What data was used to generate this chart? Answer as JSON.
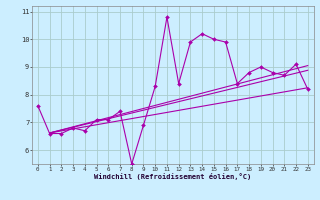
{
  "xlabel": "Windchill (Refroidissement éolien,°C)",
  "background_color": "#cceeff",
  "grid_color": "#aacccc",
  "line_color": "#aa00aa",
  "hours": [
    0,
    1,
    2,
    3,
    4,
    5,
    6,
    7,
    8,
    9,
    10,
    11,
    12,
    13,
    14,
    15,
    16,
    17,
    18,
    19,
    20,
    21,
    22,
    23
  ],
  "windchill": [
    7.6,
    6.6,
    6.6,
    6.8,
    6.7,
    7.1,
    7.1,
    7.4,
    5.5,
    6.9,
    8.3,
    10.8,
    8.4,
    9.9,
    10.2,
    10.0,
    9.9,
    8.4,
    8.8,
    9.0,
    8.8,
    8.7,
    9.1,
    8.2
  ],
  "trend_lines": [
    {
      "x0": 1,
      "y0": 6.62,
      "x1": 23,
      "y1": 9.05
    },
    {
      "x0": 1,
      "y0": 6.62,
      "x1": 23,
      "y1": 8.25
    },
    {
      "x0": 1,
      "y0": 6.62,
      "x1": 23,
      "y1": 8.88
    }
  ],
  "ylim": [
    5.5,
    11.2
  ],
  "xlim": [
    -0.5,
    23.5
  ],
  "yticks": [
    6,
    7,
    8,
    9,
    10,
    11
  ],
  "xticks": [
    0,
    1,
    2,
    3,
    4,
    5,
    6,
    7,
    8,
    9,
    10,
    11,
    12,
    13,
    14,
    15,
    16,
    17,
    18,
    19,
    20,
    21,
    22,
    23
  ]
}
